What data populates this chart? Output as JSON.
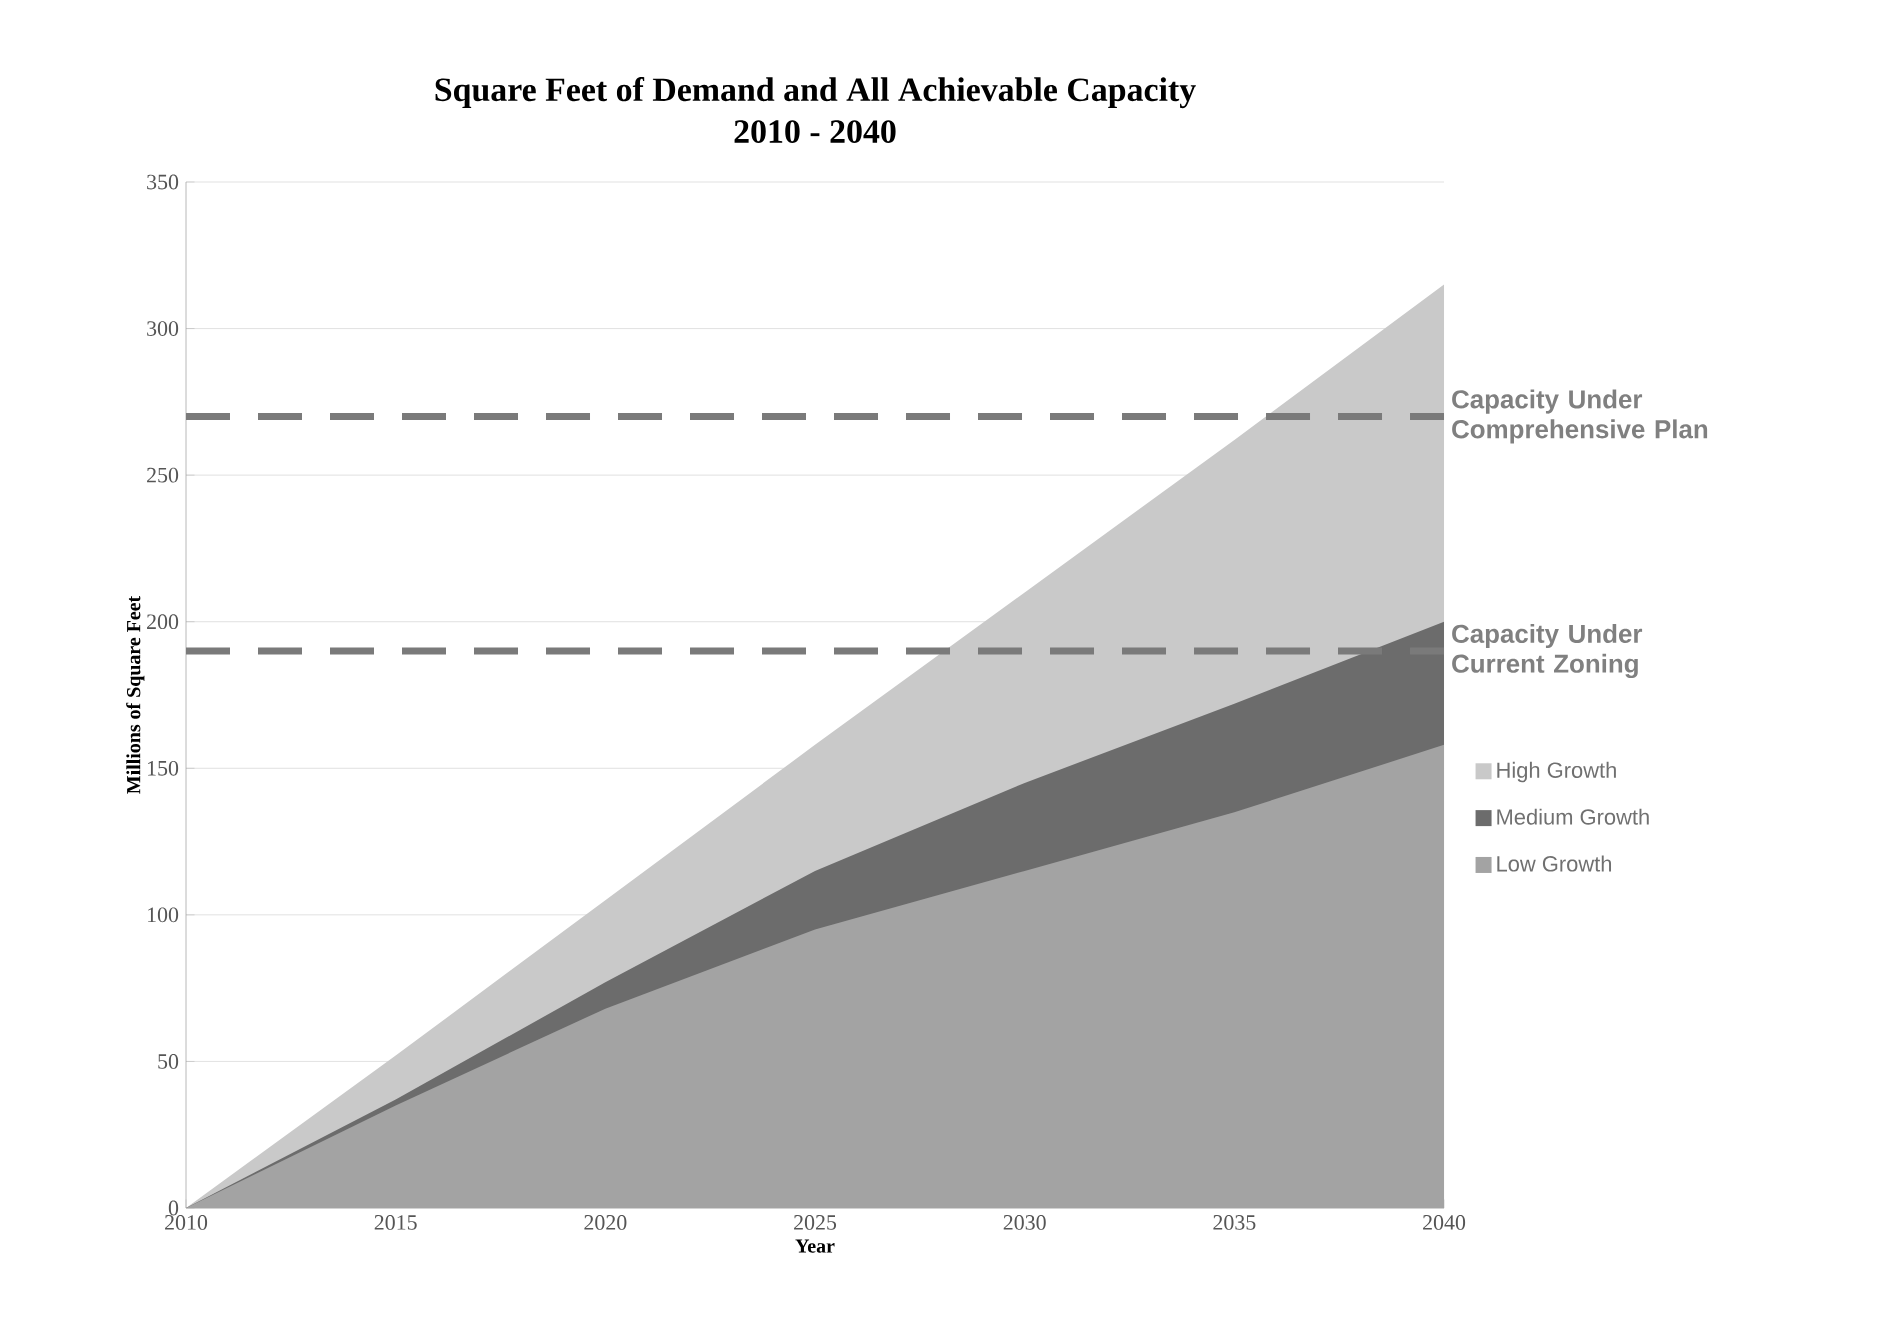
{
  "chart_data": {
    "type": "area",
    "title": "Square Feet of Demand and All Achievable Capacity",
    "subtitle": "2010 - 2040",
    "xlabel": "Year",
    "ylabel": "Millions of Square Feet",
    "x": [
      2010,
      2015,
      2020,
      2025,
      2030,
      2035,
      2040
    ],
    "series": [
      {
        "name": "High Growth",
        "color": "#c9c9c9",
        "values": [
          0,
          52,
          105,
          158,
          210,
          262,
          315
        ]
      },
      {
        "name": "Medium Growth",
        "color": "#6c6c6c",
        "values": [
          0,
          37,
          77,
          115,
          145,
          172,
          200
        ]
      },
      {
        "name": "Low Growth",
        "color": "#a3a3a3",
        "values": [
          0,
          35,
          68,
          95,
          115,
          135,
          158
        ]
      }
    ],
    "ref_lines": [
      {
        "axis": "y",
        "value": 270,
        "label": "Capacity Under Comprehensive Plan",
        "color": "#7a7a7a",
        "line_style": "dashed"
      },
      {
        "axis": "y",
        "value": 190,
        "label": "Capacity Under Current Zoning",
        "color": "#7a7a7a",
        "line_style": "dashed"
      }
    ],
    "xlim": [
      2010,
      2040
    ],
    "xticks": [
      2010,
      2015,
      2020,
      2025,
      2030,
      2035,
      2040
    ],
    "ylim": [
      0,
      350
    ],
    "yticks": [
      0,
      50,
      100,
      150,
      200,
      250,
      300,
      350
    ],
    "grid": "y",
    "legend": "right"
  }
}
